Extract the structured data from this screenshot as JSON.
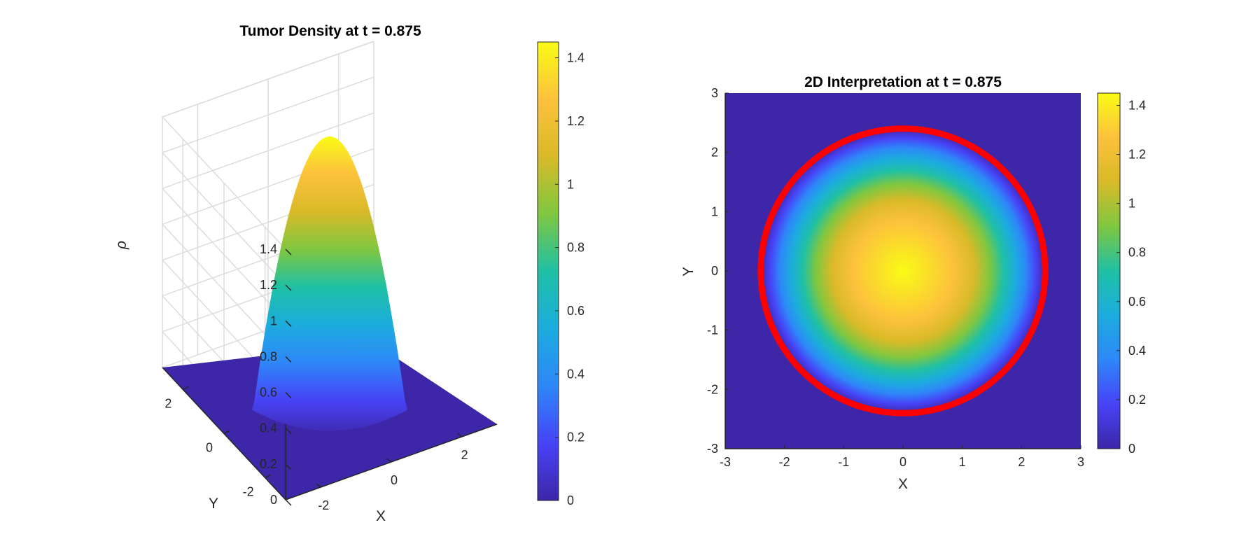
{
  "figure": {
    "background": "#ffffff",
    "colormap": "parula",
    "colormap_stops": [
      "#3e26a8",
      "#4743f7",
      "#2e87f8",
      "#1cacde",
      "#1fc0a5",
      "#7fc740",
      "#d9ba28",
      "#fcc13c",
      "#f9fb15"
    ]
  },
  "chart_data": [
    {
      "type": "surface",
      "title": "Tumor Density at t = 0.875",
      "xlabel": "X",
      "ylabel": "Y",
      "zlabel": "ρ",
      "xlim": [
        -3,
        3
      ],
      "ylim": [
        -3,
        3
      ],
      "zlim": [
        0,
        1.4
      ],
      "xticks": [
        -2,
        0,
        2
      ],
      "yticks": [
        -2,
        0,
        2
      ],
      "zticks": [
        0,
        0.2,
        0.4,
        0.6,
        0.8,
        1,
        1.2,
        1.4
      ],
      "grid": true,
      "surface": {
        "shape": "radial paraboloid",
        "center": [
          0,
          0
        ],
        "peak": 1.45,
        "support_radius": 2.4,
        "floor": 0
      },
      "colorbar": {
        "ticks": [
          0,
          0.2,
          0.4,
          0.6,
          0.8,
          1,
          1.2,
          1.4
        ],
        "range": [
          0,
          1.45
        ],
        "placement": "right"
      }
    },
    {
      "type": "heatmap",
      "title": "2D Interpretation at t = 0.875",
      "xlabel": "X",
      "ylabel": "Y",
      "xlim": [
        -3,
        3
      ],
      "ylim": [
        -3,
        3
      ],
      "xticks": [
        -3,
        -2,
        -1,
        0,
        1,
        2,
        3
      ],
      "yticks": [
        -3,
        -2,
        -1,
        0,
        1,
        2,
        3
      ],
      "field": {
        "shape": "radial",
        "center": [
          0,
          0
        ],
        "peak": 1.45,
        "support_radius": 2.4
      },
      "contour": {
        "color": "#ff0000",
        "radius": 2.4,
        "linewidth": "thick"
      },
      "colorbar": {
        "ticks": [
          0,
          0.2,
          0.4,
          0.6,
          0.8,
          1,
          1.2,
          1.4
        ],
        "range": [
          0,
          1.45
        ],
        "placement": "right"
      }
    }
  ]
}
